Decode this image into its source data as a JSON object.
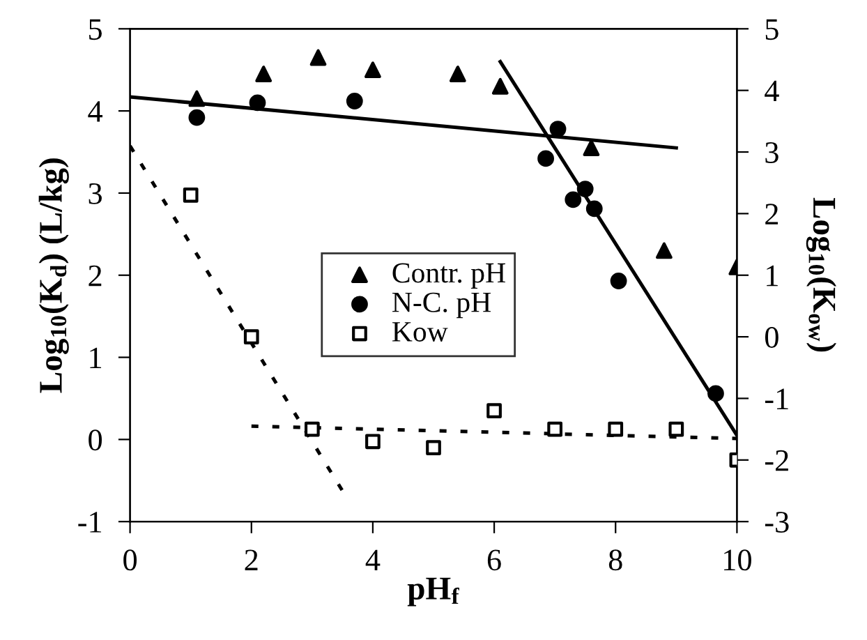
{
  "chart_data": {
    "type": "scatter",
    "xlabel": "pH$_{f}$",
    "ylabel": "Log$_{10}$(K$_{d}$) (L/kg)",
    "y2label": "Log$_{10}$(K$_{ow}$)",
    "xlim": [
      0,
      10
    ],
    "xticks": [
      0,
      2,
      4,
      6,
      8,
      10
    ],
    "ylim": [
      -1,
      5
    ],
    "yticks": [
      -1,
      0,
      1,
      2,
      3,
      4,
      5
    ],
    "y2lim": [
      -3,
      5
    ],
    "y2ticks": [
      -3,
      -2,
      -1,
      0,
      1,
      2,
      3,
      4,
      5
    ],
    "grid": false,
    "legend": "center",
    "series": [
      {
        "name": "Contr. pH",
        "marker": "triangle",
        "color": "#000000",
        "x": [
          1.1,
          2.2,
          3.1,
          4.0,
          5.4,
          6.1,
          7.6,
          8.8,
          10.0
        ],
        "values": [
          4.15,
          4.45,
          4.65,
          4.5,
          4.45,
          4.3,
          3.55,
          2.3,
          2.1
        ]
      },
      {
        "name": "N-C. pH",
        "marker": "circle",
        "color": "#000000",
        "x": [
          1.1,
          2.1,
          3.7,
          6.85,
          7.05,
          7.3,
          7.5,
          7.65,
          8.05,
          9.65
        ],
        "values": [
          3.92,
          4.1,
          4.12,
          3.42,
          3.78,
          2.92,
          3.05,
          2.81,
          1.93,
          0.56
        ]
      },
      {
        "name": "Kow",
        "marker": "square",
        "axis": "y2",
        "color": "#000000",
        "x": [
          1,
          2,
          3,
          4,
          5,
          6,
          7,
          8,
          9,
          10
        ],
        "values": [
          2.3,
          0.0,
          -1.5,
          -1.7,
          -1.8,
          -1.2,
          -1.5,
          -1.5,
          -1.5,
          -2.0
        ]
      },
      {
        "type": "line",
        "line_style": "solid",
        "color": "#000000",
        "x": [
          0,
          9
        ],
        "values": [
          4.17,
          3.55
        ]
      },
      {
        "type": "line",
        "line_style": "solid",
        "color": "#000000",
        "x": [
          6.1,
          10
        ],
        "values": [
          4.6,
          0.05
        ]
      },
      {
        "type": "line",
        "line_style": "dotted",
        "axis": "y2",
        "color": "#000000",
        "x": [
          0,
          3.5
        ],
        "values": [
          3.1,
          -2.5
        ]
      },
      {
        "type": "line",
        "line_style": "dotted",
        "axis": "y2",
        "color": "#000000",
        "x": [
          2,
          10
        ],
        "values": [
          -1.45,
          -1.65
        ]
      }
    ]
  }
}
